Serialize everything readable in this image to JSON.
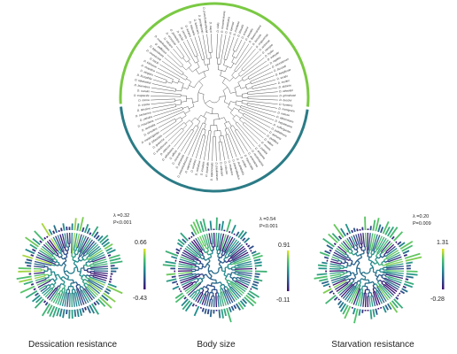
{
  "main_tree": {
    "tip_count": 96,
    "clade_colors": {
      "upper": "#7ac943",
      "lower": "#2b7b86"
    },
    "tip_labels": [
      "D. virilis",
      "D. novamexicana",
      "D. americana",
      "D. lummei",
      "D. montana",
      "D. littoralis",
      "D. ezoana",
      "D. borealis",
      "D. flavomontana",
      "D. lacicola",
      "D. mojavensis",
      "D. arizonae",
      "D. navojoa",
      "D. hydei",
      "D. eohydei",
      "D. repleta",
      "D. mercatorum",
      "D. buzzatii",
      "D. koepferae",
      "D. serido",
      "D. mulleri",
      "D. aldrichi",
      "D. wheeleri",
      "D. grimshawi",
      "D. busckii",
      "D. funebris",
      "D. immigrans",
      "D. nasuta",
      "D. albomicans",
      "D. kepulauana",
      "D. sulfurigaster",
      "D. pallidifrons",
      "D. quinaria",
      "D. guttifera",
      "D. falleni",
      "D. recens",
      "D. putrida",
      "D. testacea",
      "D. neotestacea",
      "D. orientacea",
      "D. tripunctata",
      "D. cardini",
      "D. acutilabella",
      "D. paramelanica",
      "D. melanica",
      "D. robusta",
      "D. willistoni",
      "D. paulistorum",
      "D. equinoxialis",
      "D. tropicalis",
      "D. insularis",
      "D. nebulosa",
      "D. sucinea",
      "D. capricorni",
      "D. pseudoobscura",
      "D. persimilis",
      "D. miranda",
      "D. affinis",
      "D. athabasca",
      "D. obscura",
      "D. subobscura",
      "D. guanche",
      "D. bifasciata",
      "D. melanogaster",
      "D. simulans",
      "D. sechellia",
      "D. mauritiana",
      "D. yakuba",
      "D. santomea",
      "D. teissieri",
      "D. erecta",
      "D. orena",
      "D. eugracilis",
      "D. suzukii",
      "D. biarmipes",
      "D. takahashii",
      "D. ficusphila",
      "D. elegans",
      "D. rhopaloa",
      "D. kikkawai",
      "D. bocki",
      "D. ananassae",
      "D. bipectinata",
      "D. pallidosa",
      "D. malerkotliana",
      "D. varians",
      "D. ercepeae",
      "D. jambulina",
      "D. birchii",
      "D. serrata",
      "D. auraria",
      "D. triauraria",
      "D. lutescens",
      "D. prostipennis",
      "D. pseudotakahashii",
      "D. mayri"
    ]
  },
  "panels": [
    {
      "title": "Dessication resistance",
      "lambda": "λ =0.32",
      "p": "P<0.001",
      "max": "0.66",
      "min": "-0.43"
    },
    {
      "title": "Body size",
      "lambda": "λ =0.54",
      "p": "P<0.001",
      "max": "0.91",
      "min": "-0.11"
    },
    {
      "title": "Starvation resistance",
      "lambda": "λ =0.20",
      "p": "P=0.009",
      "max": "1.31",
      "min": "-0.28"
    }
  ],
  "colormap": [
    "#3b0f70",
    "#2c4e8a",
    "#21908d",
    "#4fc26b",
    "#e8e419"
  ]
}
